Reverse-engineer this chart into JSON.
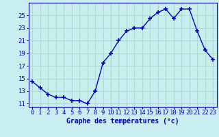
{
  "hours": [
    0,
    1,
    2,
    3,
    4,
    5,
    6,
    7,
    8,
    9,
    10,
    11,
    12,
    13,
    14,
    15,
    16,
    17,
    18,
    19,
    20,
    21,
    22,
    23
  ],
  "temps": [
    14.5,
    13.5,
    12.5,
    12.0,
    12.0,
    11.5,
    11.5,
    11.0,
    13.0,
    17.5,
    19.0,
    21.0,
    22.5,
    23.0,
    23.0,
    24.5,
    25.5,
    26.0,
    24.5,
    26.0,
    26.0,
    22.5,
    19.5,
    18.0
  ],
  "line_color": "#0000cc",
  "marker": "+",
  "bg_color": "#c8eef0",
  "grid_color": "#aaddcc",
  "axis_color": "#0000aa",
  "xlabel": "Graphe des températures (°c)",
  "xlabel_fontsize": 7,
  "tick_fontsize": 6.5,
  "ylim": [
    10.5,
    27.0
  ],
  "yticks": [
    11,
    13,
    15,
    17,
    19,
    21,
    23,
    25
  ],
  "xlim": [
    -0.5,
    23.5
  ]
}
